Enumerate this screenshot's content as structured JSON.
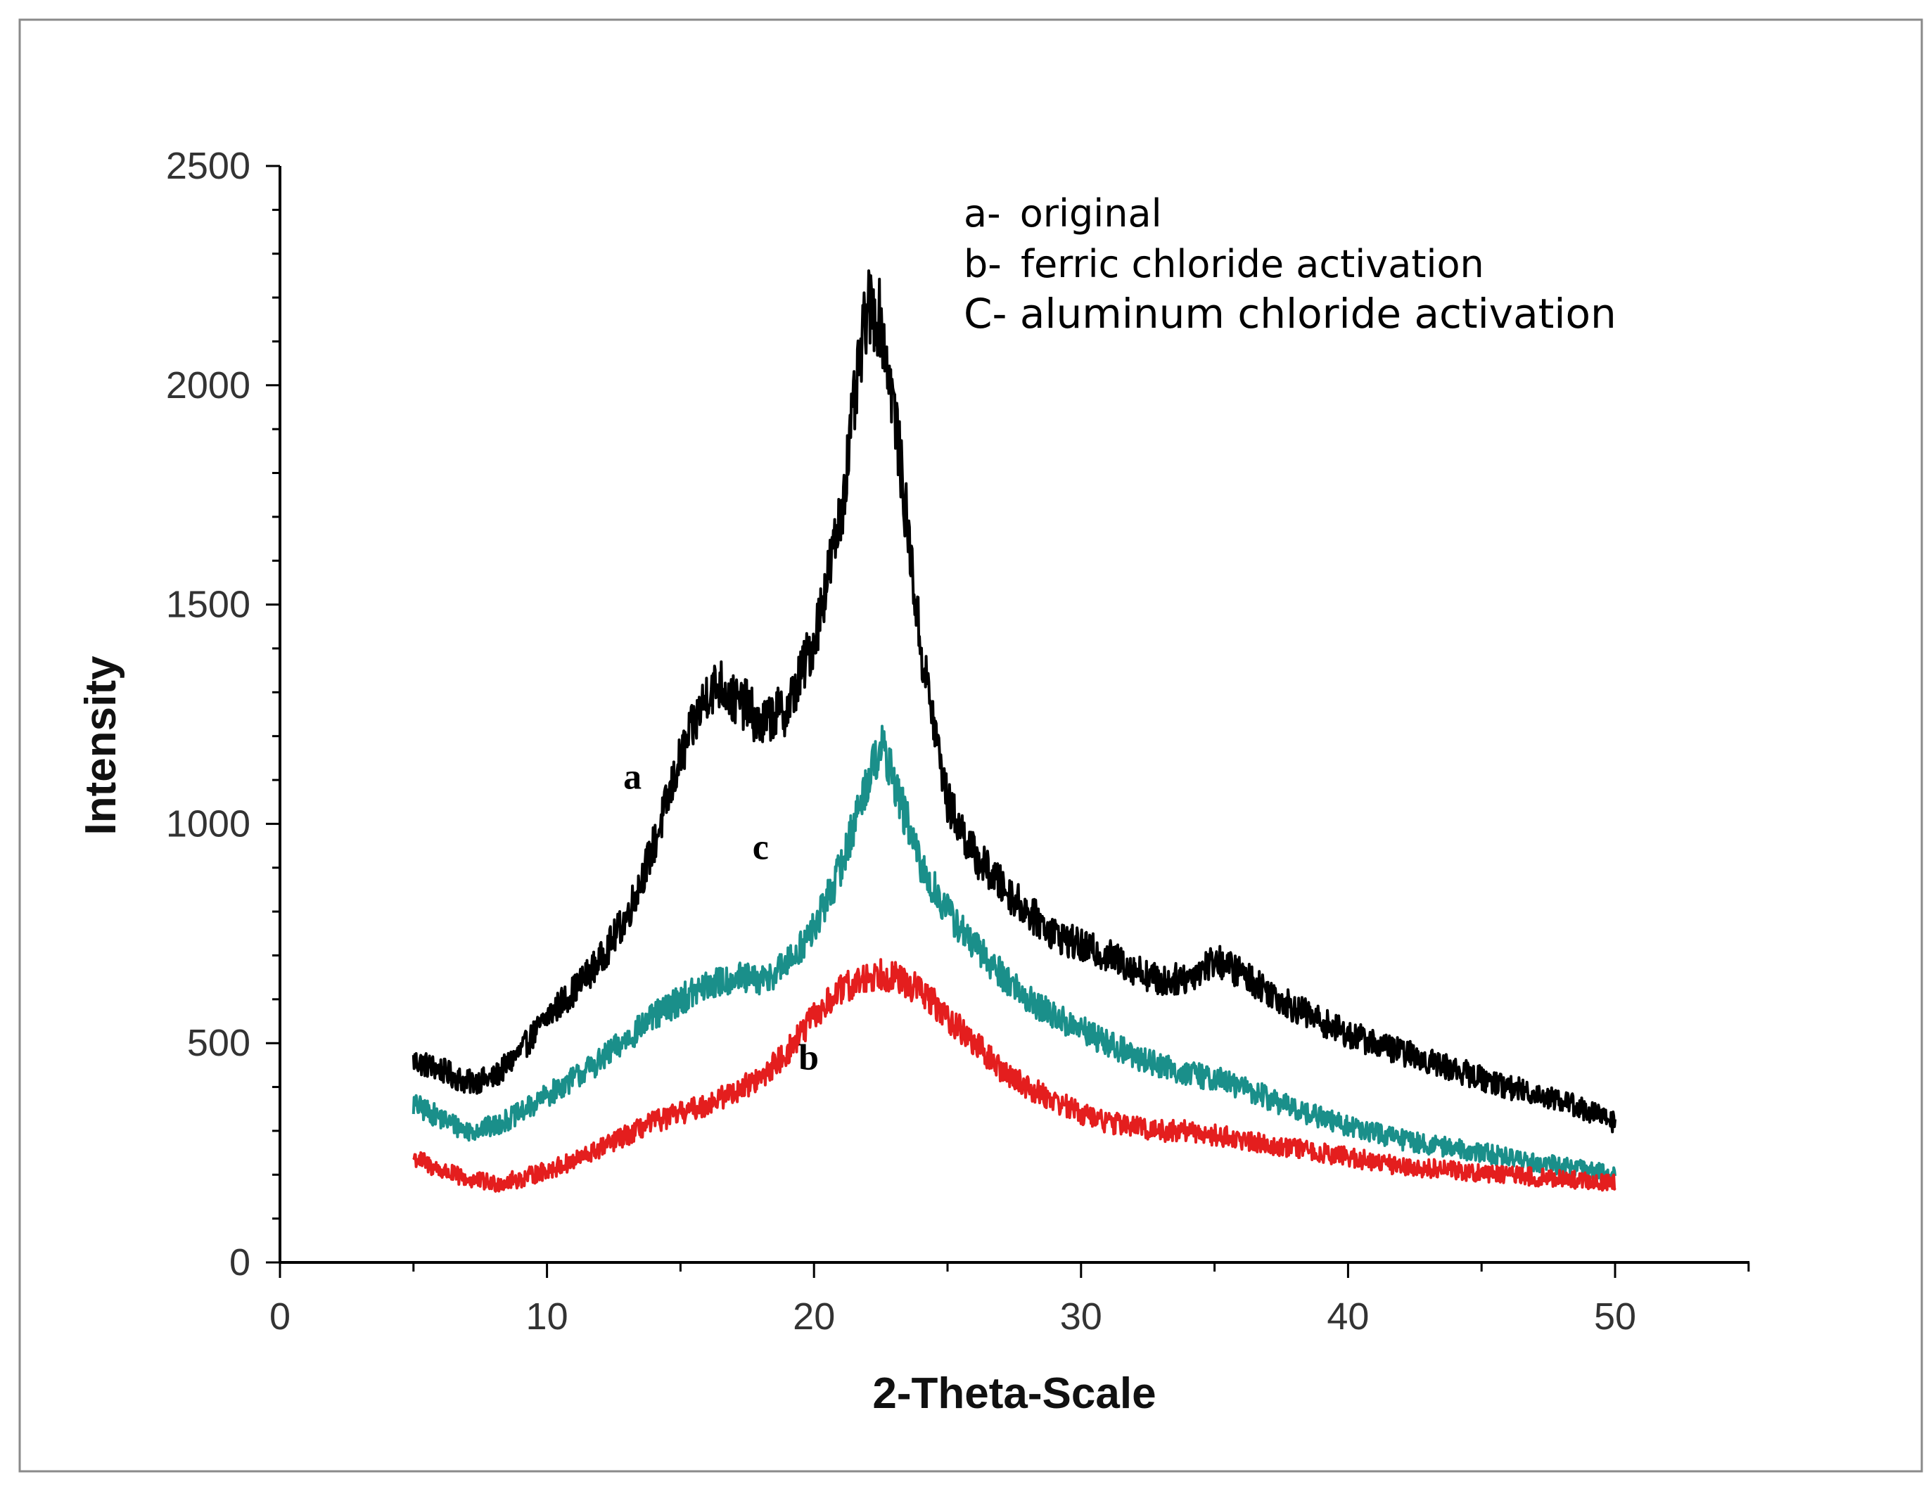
{
  "chart_data": {
    "type": "line",
    "title": "",
    "xlabel": "2-Theta-Scale",
    "ylabel": "Intensity",
    "xlim": [
      0,
      55
    ],
    "ylim": [
      0,
      2500
    ],
    "x_ticks": [
      0,
      10,
      20,
      30,
      40,
      50
    ],
    "y_ticks": [
      0,
      500,
      1000,
      1500,
      2000,
      2500
    ],
    "x_tick_labels": [
      "0",
      "10",
      "20",
      "30",
      "40",
      "50"
    ],
    "y_tick_labels": [
      "0",
      "500",
      "1000",
      "1500",
      "2000",
      "2500"
    ],
    "legend": [
      {
        "key": "a-",
        "text": "original"
      },
      {
        "key": "b-",
        "text": "ferric chloride activation"
      },
      {
        "key": "C-",
        "text": "aluminum chloride activation"
      }
    ],
    "series": [
      {
        "name": "a",
        "label": "a",
        "color": "#000000",
        "label_at": [
          13.2,
          1080
        ],
        "x": [
          5,
          6,
          7,
          8,
          9,
          10,
          11,
          12,
          13,
          14,
          15,
          16,
          16.5,
          17,
          17.5,
          18,
          18.5,
          19,
          20,
          21,
          21.5,
          22,
          22.5,
          23,
          24,
          25,
          26,
          27,
          28,
          29,
          30,
          31,
          32,
          33,
          34,
          35,
          36,
          37,
          38,
          40,
          42,
          44,
          46,
          48,
          50
        ],
        "y": [
          460,
          440,
          410,
          420,
          480,
          560,
          620,
          690,
          790,
          950,
          1150,
          1300,
          1320,
          1280,
          1270,
          1220,
          1250,
          1260,
          1420,
          1700,
          1950,
          2180,
          2150,
          1950,
          1400,
          1050,
          930,
          860,
          800,
          750,
          720,
          700,
          670,
          640,
          650,
          690,
          660,
          620,
          580,
          520,
          480,
          440,
          400,
          370,
          320
        ]
      },
      {
        "name": "c",
        "label": "c",
        "color": "#1a8f8a",
        "label_at": [
          18,
          920
        ],
        "x": [
          5,
          6,
          7,
          8,
          9,
          10,
          11,
          12,
          13,
          14,
          15,
          16,
          17,
          18,
          19,
          20,
          21,
          22,
          22.5,
          23,
          24,
          25,
          26,
          27,
          28,
          29,
          30,
          31,
          32,
          33,
          34,
          35,
          36,
          38,
          40,
          42,
          44,
          46,
          48,
          50
        ],
        "y": [
          360,
          330,
          300,
          310,
          340,
          380,
          420,
          460,
          510,
          560,
          600,
          630,
          650,
          640,
          680,
          760,
          900,
          1100,
          1180,
          1100,
          900,
          800,
          720,
          660,
          600,
          560,
          530,
          500,
          470,
          450,
          430,
          420,
          400,
          350,
          310,
          280,
          260,
          240,
          220,
          200
        ]
      },
      {
        "name": "b",
        "label": "b",
        "color": "#e41e1e",
        "label_at": [
          19.8,
          440
        ],
        "x": [
          5,
          6,
          7,
          8,
          9,
          10,
          11,
          12,
          13,
          14,
          15,
          16,
          17,
          18,
          19,
          20,
          21,
          22,
          22.5,
          23,
          24,
          25,
          26,
          27,
          28,
          29,
          30,
          31,
          32,
          33,
          34,
          35,
          36,
          38,
          40,
          42,
          44,
          46,
          48,
          50
        ],
        "y": [
          240,
          210,
          190,
          180,
          190,
          210,
          230,
          260,
          290,
          320,
          340,
          360,
          390,
          420,
          480,
          560,
          620,
          650,
          660,
          650,
          620,
          560,
          500,
          440,
          400,
          370,
          340,
          320,
          310,
          300,
          300,
          290,
          280,
          260,
          240,
          220,
          210,
          200,
          190,
          180
        ]
      }
    ]
  }
}
